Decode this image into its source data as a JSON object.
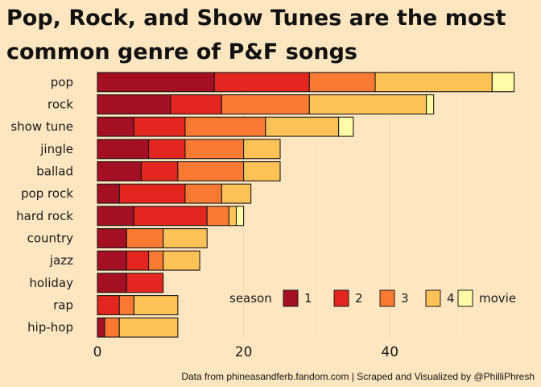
{
  "chart_data": {
    "type": "bar",
    "orientation": "horizontal",
    "stacked": true,
    "title": "Pop, Rock, and Show Tunes are the most common genre of P&F songs",
    "xlabel": "",
    "ylabel": "",
    "xlim": [
      0,
      57
    ],
    "xticks": [
      "0",
      "20",
      "40"
    ],
    "xtick_values": [
      0,
      20,
      40
    ],
    "grid": true,
    "legend_title": "season",
    "legend_position": "bottom-right",
    "categories": [
      "pop",
      "rock",
      "show tune",
      "jingle",
      "ballad",
      "pop rock",
      "hard rock",
      "country",
      "jazz",
      "holiday",
      "rap",
      "hip-hop"
    ],
    "series": [
      {
        "name": "1",
        "color": "#A50F23",
        "values": [
          16,
          10,
          5,
          7,
          6,
          3,
          5,
          4,
          4,
          4,
          0,
          1
        ]
      },
      {
        "name": "2",
        "color": "#E3261F",
        "values": [
          13,
          7,
          7,
          5,
          5,
          9,
          10,
          0,
          3,
          5,
          3,
          0
        ]
      },
      {
        "name": "3",
        "color": "#FA7A33",
        "values": [
          9,
          12,
          11,
          8,
          9,
          5,
          3,
          5,
          2,
          0,
          2,
          2
        ]
      },
      {
        "name": "4",
        "color": "#FEC257",
        "values": [
          16,
          16,
          10,
          5,
          5,
          4,
          1,
          6,
          5,
          0,
          6,
          8
        ]
      },
      {
        "name": "movie",
        "color": "#FFFCA7",
        "values": [
          3,
          1,
          2,
          0,
          0,
          0,
          1,
          0,
          0,
          0,
          0,
          0
        ]
      }
    ]
  },
  "caption": "Data from phineasandferb.fandom.com  |  Scraped and Visualized by @PhilliPhresh"
}
